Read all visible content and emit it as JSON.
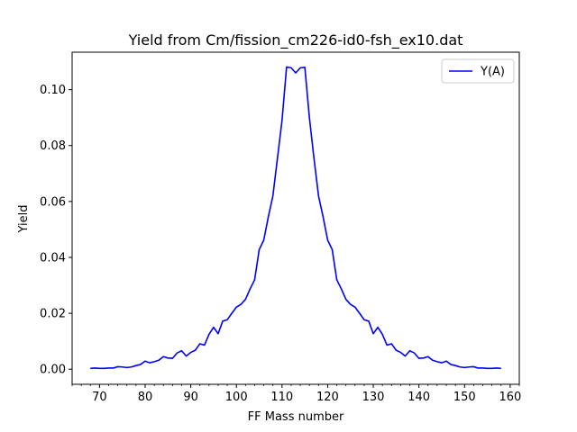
{
  "chart_data": {
    "type": "line",
    "title": "Yield from  Cm/fission_cm226-id0-fsh_ex10.dat",
    "xlabel": "FF Mass number",
    "ylabel": "Yield",
    "xlim": [
      64,
      162
    ],
    "ylim": [
      -0.0054,
      0.1134
    ],
    "x_major_ticks": [
      70,
      80,
      90,
      100,
      110,
      120,
      130,
      140,
      150,
      160
    ],
    "x_minor_step": 2,
    "y_ticks": [
      0.0,
      0.02,
      0.04,
      0.06,
      0.08,
      0.1
    ],
    "y_tick_labels": [
      "0.00",
      "0.02",
      "0.04",
      "0.06",
      "0.08",
      "0.10"
    ],
    "grid": false,
    "legend_position": "top-right",
    "series": [
      {
        "name": "Y(A)",
        "color": "#0000ff",
        "x": [
          68,
          69,
          70,
          71,
          72,
          73,
          74,
          75,
          76,
          77,
          78,
          79,
          80,
          81,
          82,
          83,
          84,
          85,
          86,
          87,
          88,
          89,
          90,
          91,
          92,
          93,
          94,
          95,
          96,
          97,
          98,
          99,
          100,
          101,
          102,
          103,
          104,
          105,
          106,
          107,
          108,
          109,
          110,
          111,
          112,
          113,
          114,
          115,
          116,
          117,
          118,
          119,
          120,
          121,
          122,
          123,
          124,
          125,
          126,
          127,
          128,
          129,
          130,
          131,
          132,
          133,
          134,
          135,
          136,
          137,
          138,
          139,
          140,
          141,
          142,
          143,
          144,
          145,
          146,
          147,
          148,
          149,
          150,
          151,
          152,
          153,
          154,
          155,
          156,
          157,
          158
        ],
        "values": [
          0.0003,
          0.0004,
          0.0003,
          0.0003,
          0.0004,
          0.0004,
          0.0009,
          0.0008,
          0.0006,
          0.0008,
          0.0013,
          0.0017,
          0.0029,
          0.0023,
          0.0027,
          0.0032,
          0.0045,
          0.004,
          0.0039,
          0.0058,
          0.0066,
          0.0047,
          0.006,
          0.0068,
          0.0091,
          0.0086,
          0.0125,
          0.015,
          0.0127,
          0.0172,
          0.0177,
          0.02,
          0.0222,
          0.0232,
          0.025,
          0.0287,
          0.032,
          0.0428,
          0.0462,
          0.0545,
          0.062,
          0.0755,
          0.089,
          0.1081,
          0.1078,
          0.106,
          0.1078,
          0.108,
          0.09,
          0.0755,
          0.062,
          0.0545,
          0.0462,
          0.0428,
          0.032,
          0.0287,
          0.025,
          0.0232,
          0.0222,
          0.02,
          0.0177,
          0.0172,
          0.0127,
          0.015,
          0.0125,
          0.0086,
          0.0091,
          0.0068,
          0.006,
          0.0047,
          0.0066,
          0.0058,
          0.0039,
          0.004,
          0.0045,
          0.0032,
          0.0027,
          0.0023,
          0.0029,
          0.0017,
          0.0013,
          0.0008,
          0.0006,
          0.0008,
          0.0009,
          0.0004,
          0.0004,
          0.0003,
          0.0003,
          0.0004,
          0.0003
        ]
      }
    ]
  }
}
